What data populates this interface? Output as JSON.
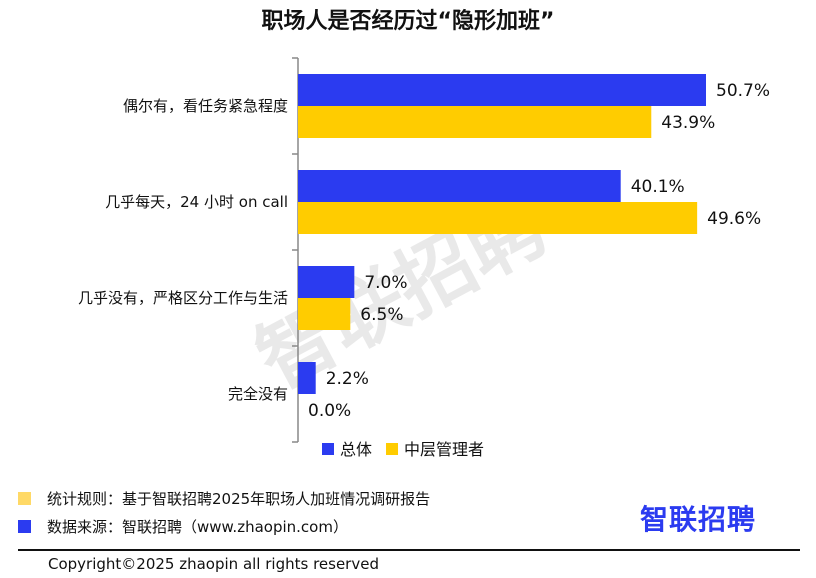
{
  "chart_data": {
    "type": "bar",
    "orientation": "horizontal",
    "title": "职场人是否经历过“隐形加班”",
    "categories": [
      "偶尔有，看任务紧急程度",
      "几乎每天，24 小时 on call",
      "几乎没有，严格区分工作与生活",
      "完全没有"
    ],
    "series": [
      {
        "name": "总体",
        "color": "#2b3bf0",
        "values": [
          50.7,
          40.1,
          7.0,
          2.2
        ],
        "labels": [
          "50.7%",
          "40.1%",
          "7.0%",
          "2.2%"
        ]
      },
      {
        "name": "中层管理者",
        "color": "#ffcc00",
        "values": [
          43.9,
          49.6,
          6.5,
          0.0
        ],
        "labels": [
          "43.9%",
          "49.6%",
          "6.5%",
          "0.0%"
        ]
      }
    ],
    "xlim": [
      0,
      60
    ],
    "grid": false,
    "legend_position": "bottom"
  },
  "watermark": "智联招聘",
  "footer": {
    "note_stat": "统计规则：基于智联招聘2025年职场人加班情况调研报告",
    "note_source": "数据来源：智联招聘（www.zhaopin.com）",
    "note_stat_color": "#ffd966",
    "note_source_color": "#2b3bf0",
    "logo": "智联招聘",
    "copyright": "Copyright©2025 zhaopin all rights reserved"
  }
}
